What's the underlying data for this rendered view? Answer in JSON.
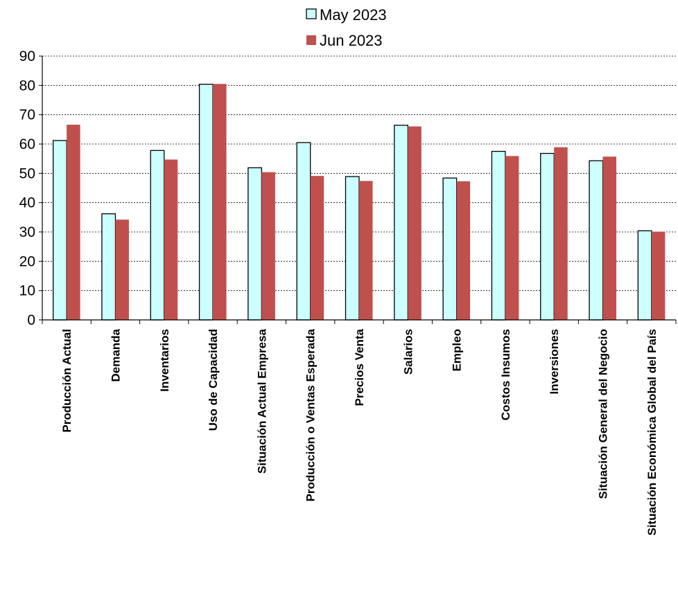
{
  "chart_data": {
    "type": "bar",
    "title": "",
    "xlabel": "",
    "ylabel": "",
    "ylim": [
      0,
      90
    ],
    "yticks": [
      0,
      10,
      20,
      30,
      40,
      50,
      60,
      70,
      80,
      90
    ],
    "grid": "horizontal-dashed",
    "legend_position": "top-center",
    "categories": [
      "Producción Actual",
      "Demanda",
      "Inventarios",
      "Uso de Capacidad",
      "Situación Actual Empresa",
      "Producción o Ventas Esperada",
      "Precios Venta",
      "Salarios",
      "Empleo",
      "Costos Insumos",
      "Inversiones",
      "Situación General del Negocio",
      "Situación Económica Global del País"
    ],
    "series": [
      {
        "name": "May 2023",
        "color": "#ccffff",
        "values": [
          61.2,
          36.2,
          57.8,
          80.4,
          51.9,
          60.5,
          48.9,
          66.4,
          48.4,
          57.5,
          56.8,
          54.3,
          30.4
        ]
      },
      {
        "name": "Jun 2023",
        "color": "#c0504d",
        "values": [
          66.6,
          34.2,
          54.7,
          80.5,
          50.4,
          49.1,
          47.4,
          66.0,
          47.3,
          55.9,
          58.9,
          55.7,
          30.1
        ]
      }
    ]
  }
}
